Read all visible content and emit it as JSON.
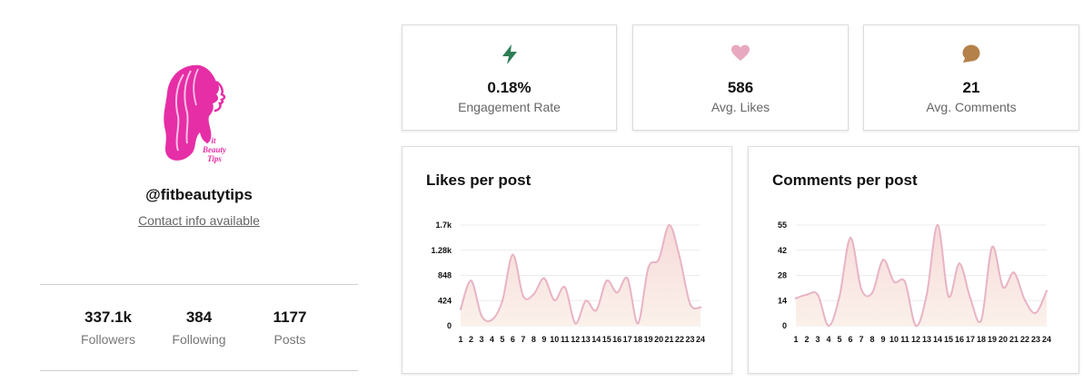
{
  "profile": {
    "logo_text": [
      "Fit",
      "Beauty",
      "Tips"
    ],
    "handle": "@fitbeautytips",
    "contact": "Contact info available",
    "stats": [
      {
        "value": "337.1k",
        "label": "Followers"
      },
      {
        "value": "384",
        "label": "Following"
      },
      {
        "value": "1177",
        "label": "Posts"
      }
    ]
  },
  "metrics": [
    {
      "value": "0.18%",
      "label": "Engagement Rate",
      "icon": "lightning-icon",
      "color": "#2e7d55"
    },
    {
      "value": "586",
      "label": "Avg. Likes",
      "icon": "heart-icon",
      "color": "#e8a9c0"
    },
    {
      "value": "21",
      "label": "Avg. Comments",
      "icon": "comment-icon",
      "color": "#b5814a"
    }
  ],
  "colors": {
    "line": "#e8b4c4",
    "fill_top": "#f6dada",
    "fill_bottom": "#fbf1ea",
    "grid": "#ececec"
  },
  "chart_data": [
    {
      "type": "area",
      "title": "Likes per post",
      "x": [
        1,
        2,
        3,
        4,
        5,
        6,
        7,
        8,
        9,
        10,
        11,
        12,
        13,
        14,
        15,
        16,
        17,
        18,
        19,
        20,
        21,
        22,
        23,
        24
      ],
      "y_tick_labels": [
        "0",
        "424",
        "848",
        "1.28k",
        "1.7k"
      ],
      "ylim": [
        0,
        1700
      ],
      "values": [
        280,
        760,
        170,
        100,
        420,
        1200,
        500,
        530,
        800,
        430,
        650,
        40,
        420,
        260,
        760,
        560,
        800,
        40,
        980,
        1120,
        1700,
        1160,
        370,
        310
      ]
    },
    {
      "type": "area",
      "title": "Comments per post",
      "x": [
        1,
        2,
        3,
        4,
        5,
        6,
        7,
        8,
        9,
        10,
        11,
        12,
        13,
        14,
        15,
        16,
        17,
        18,
        19,
        20,
        21,
        22,
        23,
        24
      ],
      "y_tick_labels": [
        "0",
        "14",
        "28",
        "42",
        "55"
      ],
      "ylim": [
        0,
        55
      ],
      "values": [
        15,
        17,
        17,
        0,
        16,
        48,
        20,
        18,
        36,
        24,
        24,
        0,
        17,
        55,
        16,
        34,
        15,
        3,
        43,
        21,
        29,
        14,
        7,
        19
      ]
    }
  ]
}
